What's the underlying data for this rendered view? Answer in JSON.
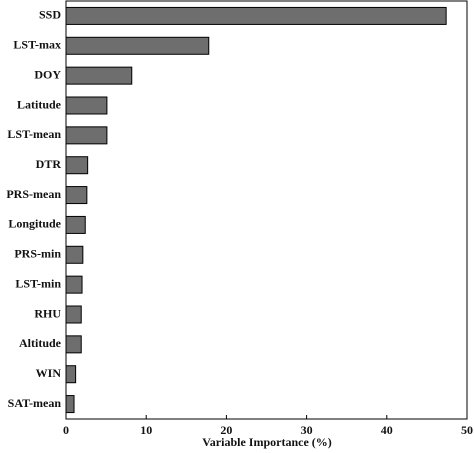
{
  "chart_data": {
    "type": "bar",
    "orientation": "horizontal",
    "xlabel": "Variable Importance (%)",
    "categories": [
      "SSD",
      "LST-max",
      "DOY",
      "Latitude",
      "LST-mean",
      "DTR",
      "PRS-mean",
      "Longitude",
      "PRS-min",
      "LST-min",
      "RHU",
      "Altitude",
      "WIN",
      "SAT-mean"
    ],
    "values": [
      47.4,
      17.8,
      8.2,
      5.1,
      5.1,
      2.7,
      2.6,
      2.4,
      2.1,
      2.0,
      1.9,
      1.9,
      1.2,
      1.0
    ],
    "color": "#6e6e6e",
    "xlim": [
      0,
      50
    ],
    "xticks": [
      0,
      10,
      20,
      30,
      40,
      50
    ]
  }
}
